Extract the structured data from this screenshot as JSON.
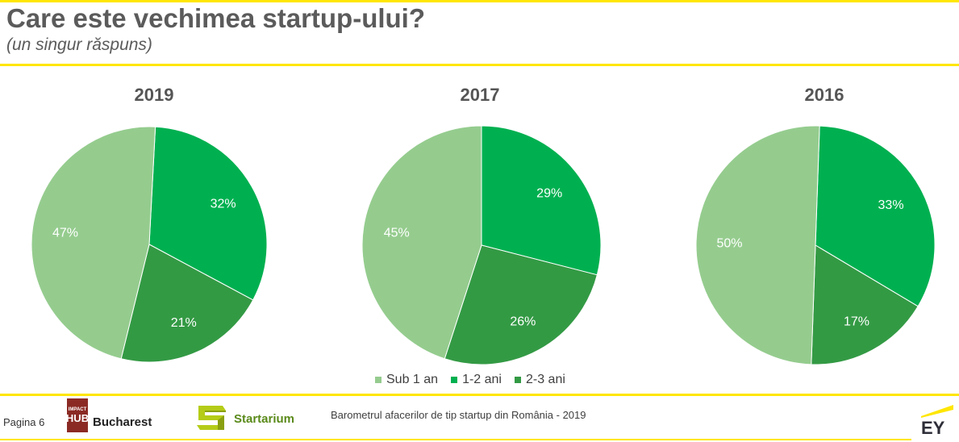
{
  "header": {
    "title": "Care este vechimea startup-ului?",
    "subtitle": "(un singur răspuns)"
  },
  "legend": {
    "items": [
      {
        "label": "Sub 1 an",
        "color": "#95cc8e"
      },
      {
        "label": "1-2 ani",
        "color": "#00b050"
      },
      {
        "label": "2-3 ani",
        "color": "#339a44"
      }
    ]
  },
  "chart_data": [
    {
      "type": "pie",
      "title": "2019",
      "categories": [
        "Sub 1 an",
        "1-2 ani",
        "2-3 ani"
      ],
      "values": [
        47,
        32,
        21
      ],
      "labels": [
        "47%",
        "32%",
        "21%"
      ]
    },
    {
      "type": "pie",
      "title": "2017",
      "categories": [
        "Sub 1 an",
        "1-2 ani",
        "2-3 ani"
      ],
      "values": [
        45,
        29,
        26
      ],
      "labels": [
        "45%",
        "29%",
        "26%"
      ]
    },
    {
      "type": "pie",
      "title": "2016",
      "categories": [
        "Sub 1 an",
        "1-2 ani",
        "2-3 ani"
      ],
      "values": [
        50,
        33,
        17
      ],
      "labels": [
        "50%",
        "33%",
        "17%"
      ]
    }
  ],
  "footer": {
    "page_label": "Pagina 6",
    "hub_small": "IMPACT",
    "hub_big": "HUB",
    "hub_city": "Bucharest",
    "startarium": "Startarium",
    "caption": "Barometrul afacerilor de tip startup din România - 2019",
    "ey_logo": "EY"
  }
}
